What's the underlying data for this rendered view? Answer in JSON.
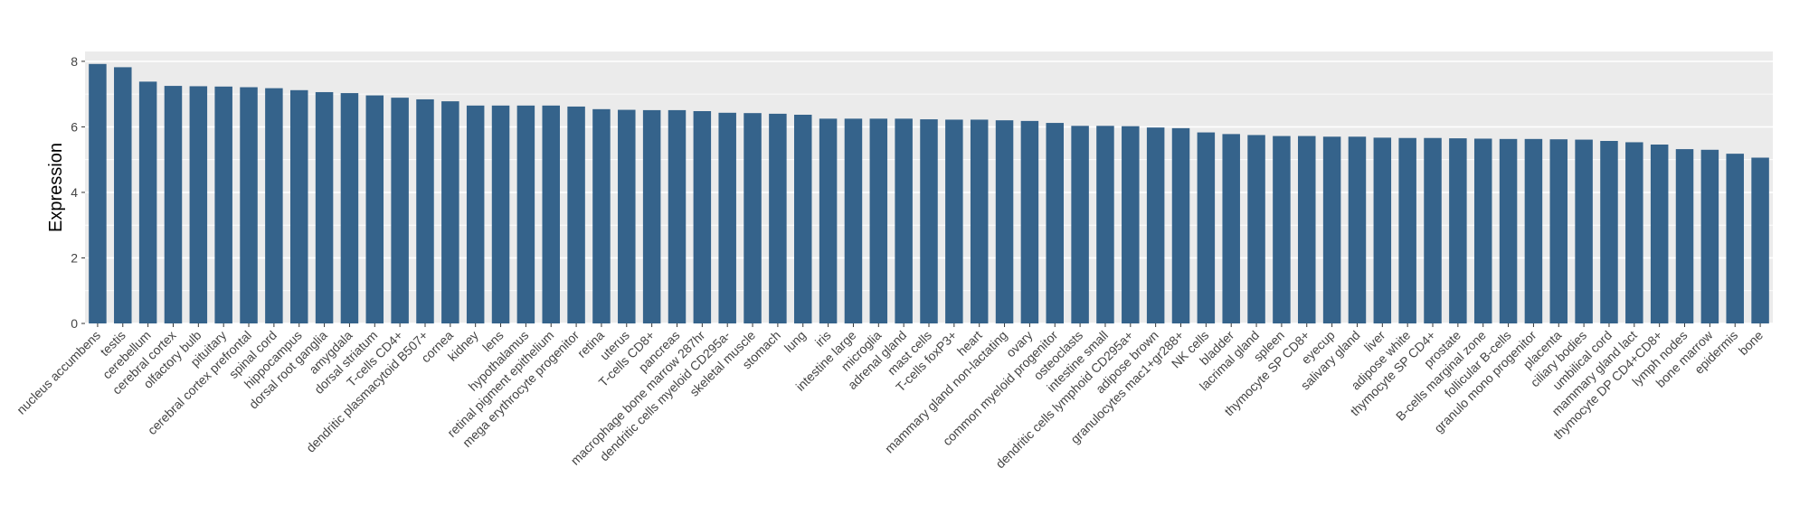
{
  "chart_data": {
    "type": "bar",
    "ylabel": "Expression",
    "xlabel": "",
    "title": "",
    "ylim": [
      0,
      8.3
    ],
    "yticks": [
      0,
      2,
      4,
      6,
      8
    ],
    "grid": true,
    "colors": {
      "bar": "#35638B",
      "panel": "#EBEBEB",
      "grid": "#FFFFFF"
    },
    "categories": [
      "nucleus accumbens",
      "testis",
      "cerebellum",
      "cerebral cortex",
      "olfactory bulb",
      "pituitary",
      "cerebral cortex prefrontal",
      "spinal cord",
      "hippocampus",
      "dorsal root ganglia",
      "amygdala",
      "dorsal striatum",
      "T-cells CD4+",
      "dendritic plasmacytoid B507+",
      "cornea",
      "kidney",
      "lens",
      "hypothalamus",
      "retinal pigment epithelium",
      "mega erythrocyte progenitor",
      "retina",
      "uterus",
      "T-cells CD8+",
      "pancreas",
      "macrophage bone marrow 287hr",
      "dendritic cells myeloid CD295a-",
      "skeletal muscle",
      "stomach",
      "lung",
      "iris",
      "intestine large",
      "microglia",
      "adrenal gland",
      "mast cells",
      "T-cells foxP3+",
      "heart",
      "mammary gland non-lactating",
      "ovary",
      "common myeloid progenitor",
      "osteoclasts",
      "intestine small",
      "dendritic cells lymphoid CD295a+",
      "adipose brown",
      "granulocytes mac1+gr288+",
      "NK cells",
      "bladder",
      "lacrimal gland",
      "spleen",
      "thymocyte SP CD8+",
      "eyecup",
      "salivary gland",
      "liver",
      "adipose white",
      "thymocyte SP CD4+",
      "prostate",
      "B-cells marginal zone",
      "follicular B-cells",
      "granulo mono progenitor",
      "placenta",
      "ciliary bodies",
      "umbilical cord",
      "mammary gland lact",
      "thymocyte DP CD4+CD8+",
      "lymph nodes",
      "bone marrow",
      "epidermis",
      "bone"
    ],
    "values": [
      7.92,
      7.82,
      7.38,
      7.25,
      7.24,
      7.23,
      7.21,
      7.18,
      7.12,
      7.06,
      7.03,
      6.96,
      6.89,
      6.84,
      6.78,
      6.65,
      6.65,
      6.65,
      6.65,
      6.62,
      6.54,
      6.52,
      6.51,
      6.51,
      6.48,
      6.43,
      6.42,
      6.4,
      6.37,
      6.25,
      6.25,
      6.25,
      6.25,
      6.23,
      6.22,
      6.22,
      6.2,
      6.18,
      6.12,
      6.03,
      6.03,
      6.02,
      5.98,
      5.96,
      5.83,
      5.78,
      5.75,
      5.72,
      5.72,
      5.7,
      5.7,
      5.67,
      5.66,
      5.66,
      5.65,
      5.64,
      5.63,
      5.63,
      5.62,
      5.61,
      5.57,
      5.53,
      5.46,
      5.32,
      5.3,
      5.18,
      5.06
    ]
  }
}
